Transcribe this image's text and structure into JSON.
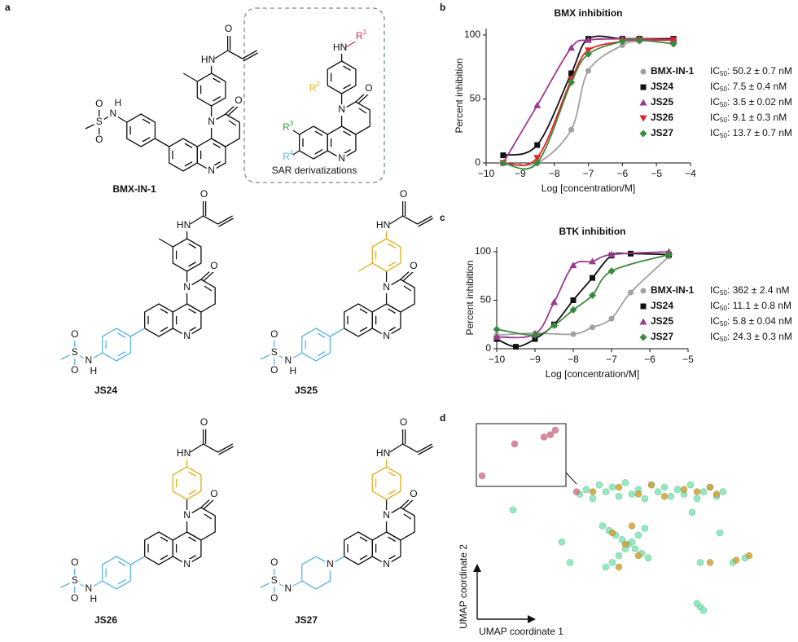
{
  "panel_labels": [
    "a",
    "b",
    "c",
    "d"
  ],
  "structures": {
    "names": [
      "BMX-IN-1",
      "JS24",
      "JS25",
      "JS26",
      "JS27"
    ],
    "sar_caption": "SAR derivatizations",
    "atoms": {
      "O": "O",
      "N": "N",
      "HN": "HN",
      "H": "H",
      "S": "S"
    },
    "sar_r": [
      {
        "main": "R",
        "sup": "1",
        "color": "#d0304a"
      },
      {
        "main": "R",
        "sup": "2",
        "color": "#e0b020"
      },
      {
        "main": "R",
        "sup": "3",
        "color": "#2a9a3a"
      },
      {
        "main": "R",
        "sup": "4",
        "color": "#5ab4e5"
      }
    ]
  },
  "ic50_main": "IC",
  "ic50_sub": "50",
  "chart_data": [
    {
      "type": "line",
      "title": "BMX inhibition",
      "x_label": "Log [concentration/M]",
      "y_label": "Percent inhibition",
      "xlim": [
        -10,
        -4
      ],
      "ylim": [
        0,
        105
      ],
      "xticks": [
        {
          "value": -10,
          "label": "−10"
        },
        {
          "value": -9,
          "label": "−9"
        },
        {
          "value": -8,
          "label": "−8"
        },
        {
          "value": -7,
          "label": "−7"
        },
        {
          "value": -6,
          "label": "−6"
        },
        {
          "value": -5,
          "label": "−5"
        },
        {
          "value": -4,
          "label": "−4"
        }
      ],
      "yticks": [
        0,
        50,
        100
      ],
      "series": [
        {
          "name": "BMX-IN-1",
          "color": "#a0a0a0",
          "marker": "circle",
          "ic50": ": 50.2 ± 0.7 nM",
          "x": [
            -9.5,
            -8.5,
            -7.5,
            -7,
            -6,
            -5.5,
            -4.5
          ],
          "values": [
            0,
            0,
            26,
            72,
            92,
            95,
            96
          ]
        },
        {
          "name": "JS24",
          "color": "#111111",
          "marker": "square",
          "ic50": ": 7.5 ± 0.4 nM",
          "x": [
            -9.5,
            -8.5,
            -7.5,
            -7,
            -6,
            -5.5,
            -4.5
          ],
          "values": [
            6,
            14,
            70,
            97,
            97,
            97,
            97
          ]
        },
        {
          "name": "JS25",
          "color": "#9b3a8f",
          "marker": "triangle-up",
          "ic50": ": 3.5 ± 0.02 nM",
          "x": [
            -9.5,
            -8.5,
            -7.5,
            -7,
            -6,
            -5.5,
            -4.5
          ],
          "values": [
            0,
            45,
            90,
            96,
            97,
            97,
            96
          ]
        },
        {
          "name": "JS26",
          "color": "#e8202a",
          "marker": "triangle-down",
          "ic50": ": 9.1 ± 0.3 nM",
          "x": [
            -9.5,
            -8.5,
            -7.5,
            -7,
            -6,
            -5.5,
            -4.5
          ],
          "values": [
            0,
            4,
            65,
            88,
            95,
            96,
            96
          ]
        },
        {
          "name": "JS27",
          "color": "#3a8a3a",
          "marker": "diamond",
          "ic50": ": 13.7 ± 0.7 nM",
          "x": [
            -9.5,
            -8.5,
            -7.5,
            -7,
            -6,
            -5.5,
            -4.5
          ],
          "values": [
            0,
            0,
            63,
            85,
            95,
            96,
            93
          ]
        }
      ]
    },
    {
      "type": "line",
      "title": "BTK inhibition",
      "x_label": "Log [concentration/M]",
      "y_label": "Percent inhibition",
      "xlim": [
        -10,
        -5
      ],
      "ylim": [
        0,
        105
      ],
      "xticks": [
        {
          "value": -10,
          "label": "−10"
        },
        {
          "value": -9,
          "label": "−9"
        },
        {
          "value": -8,
          "label": "−8"
        },
        {
          "value": -7,
          "label": "−7"
        },
        {
          "value": -6,
          "label": "−6"
        },
        {
          "value": -5,
          "label": "−5"
        }
      ],
      "yticks": [
        0,
        50,
        100
      ],
      "series": [
        {
          "name": "BMX-IN-1",
          "color": "#a0a0a0",
          "marker": "circle",
          "ic50": ": 362 ± 2.4 nM",
          "x": [
            -10,
            -9,
            -8,
            -7.5,
            -7,
            -6.5,
            -5.5
          ],
          "values": [
            14,
            16,
            15,
            22,
            31,
            58,
            95
          ]
        },
        {
          "name": "JS24",
          "color": "#111111",
          "marker": "square",
          "ic50": ": 11.1 ± 0.8 nM",
          "x": [
            -10,
            -9.5,
            -9,
            -8.5,
            -8,
            -7.5,
            -7,
            -6.5,
            -5.5
          ],
          "values": [
            10,
            2,
            10,
            25,
            50,
            73,
            96,
            98,
            97
          ]
        },
        {
          "name": "JS25",
          "color": "#9b3a8f",
          "marker": "triangle-up",
          "ic50": ": 5.8 ± 0.04 nM",
          "x": [
            -10,
            -9,
            -8.5,
            -8,
            -7.5,
            -7,
            -5.5
          ],
          "values": [
            12,
            15,
            48,
            86,
            90,
            97,
            100
          ]
        },
        {
          "name": "JS27",
          "color": "#3a8a3a",
          "marker": "diamond",
          "ic50": ": 24.3 ± 0.3 nM",
          "x": [
            -10,
            -9,
            -8.5,
            -8,
            -7.5,
            -7,
            -5.5
          ],
          "values": [
            20,
            14,
            24,
            40,
            55,
            80,
            97
          ]
        }
      ]
    },
    {
      "type": "scatter",
      "x_label": "UMAP coordinate 1",
      "y_label": "UMAP coordinate 2",
      "xlim": [
        0,
        100
      ],
      "ylim": [
        0,
        100
      ],
      "series": [
        {
          "color": "#7ee8b6",
          "x": [
            38,
            40,
            42,
            44,
            46,
            48,
            50,
            52,
            54,
            56,
            58,
            60,
            62,
            64,
            66,
            68,
            70,
            72,
            74,
            76,
            78,
            80,
            82,
            45,
            47,
            49,
            51,
            53,
            55,
            57,
            59,
            46,
            48,
            50,
            52,
            54,
            56,
            58,
            35,
            32.5,
            17.5,
            72.5,
            75,
            85,
            88.75,
            81,
            75,
            76,
            74
          ],
          "values": [
            62,
            64,
            60,
            66,
            63,
            65,
            61,
            67,
            62,
            64,
            60,
            66,
            63,
            65,
            61,
            64,
            62,
            66,
            60,
            63,
            65,
            61,
            63,
            48,
            46,
            44,
            42,
            40,
            38,
            36,
            34,
            30,
            32,
            35,
            38,
            41,
            44,
            47,
            32,
            41,
            55,
            54,
            32,
            32,
            34,
            45,
            12.5,
            11,
            14
          ]
        },
        {
          "color": "#d4a030",
          "x": [
            42,
            50,
            56,
            60,
            64,
            70,
            74,
            78,
            48,
            52,
            56,
            50,
            54,
            86,
            90,
            78,
            80
          ],
          "values": [
            63,
            65,
            62,
            66,
            61,
            64,
            63,
            65,
            45,
            40,
            35,
            30,
            48,
            33,
            35,
            32,
            62
          ]
        },
        {
          "color": "#d9708c",
          "x": [
            8,
            18,
            27,
            29,
            30.5,
            37
          ],
          "values": [
            70,
            84,
            87,
            88,
            90,
            63
          ]
        }
      ]
    }
  ]
}
